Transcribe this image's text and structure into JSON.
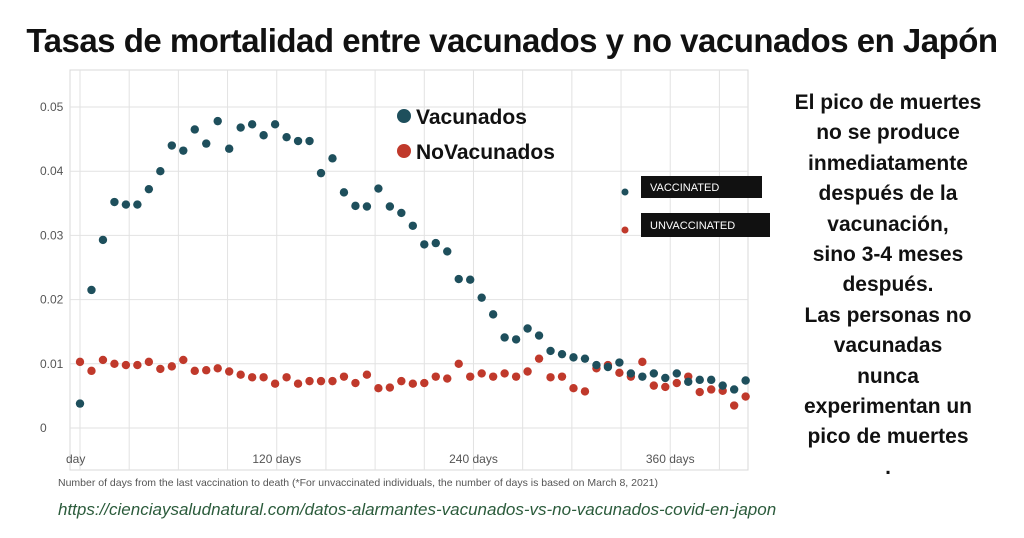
{
  "title": "Tasas de mortalidad entre vacunados y no vacunados en Japón",
  "side_note": [
    "El pico de muertes",
    "no se produce",
    "inmediatamente",
    "después de la",
    "vacunación,",
    "sino 3-4 meses",
    "después.",
    "Las personas no",
    "vacunadas",
    "nunca",
    "experimentan un",
    "pico de muertes",
    "."
  ],
  "source_url": "https://cienciaysaludnatural.com/datos-alarmantes-vacunados-vs-no-vacunados-covid-en-japon",
  "colors": {
    "vaccinated": "#1e4f5c",
    "unvaccinated": "#c0392b",
    "grid": "#e2e2e2",
    "legend_box": "#111111"
  },
  "chart_data": {
    "type": "scatter",
    "xlabel": "Number of days from the last vaccination to death (*For unvaccinated individuals, the number of days is based on March 8, 2021)",
    "ylabel": "",
    "xlim": [
      0,
      405
    ],
    "ylim": [
      0,
      0.05
    ],
    "x_ticks": [
      {
        "value": 0,
        "label": "day"
      },
      {
        "value": 120,
        "label": "120 days"
      },
      {
        "value": 240,
        "label": "240 days"
      },
      {
        "value": 360,
        "label": "360 days"
      }
    ],
    "y_ticks": [
      {
        "value": 0,
        "label": "0"
      },
      {
        "value": 0.01,
        "label": "0.01"
      },
      {
        "value": 0.02,
        "label": "0.02"
      },
      {
        "value": 0.03,
        "label": "0.03"
      },
      {
        "value": 0.04,
        "label": "0.04"
      },
      {
        "value": 0.05,
        "label": "0.05"
      }
    ],
    "grid": true,
    "legend_main": [
      {
        "label": "Vacunados",
        "series": "vaccinated"
      },
      {
        "label": "NoVacunados",
        "series": "unvaccinated"
      }
    ],
    "legend_boxes": [
      {
        "label": "VACCINATED",
        "series": "vaccinated"
      },
      {
        "label": "UNVACCINATED",
        "series": "unvaccinated"
      }
    ],
    "series": [
      {
        "name": "Vacunados",
        "key": "vaccinated",
        "x": [
          0,
          7,
          14,
          21,
          28,
          35,
          42,
          49,
          56,
          63,
          70,
          77,
          84,
          91,
          98,
          105,
          112,
          119,
          126,
          133,
          140,
          147,
          154,
          161,
          168,
          175,
          182,
          189,
          196,
          203,
          210,
          217,
          224,
          231,
          238,
          245,
          252,
          259,
          266,
          273,
          280,
          287,
          294,
          301,
          308,
          315,
          322,
          329,
          336,
          343,
          350,
          357,
          364,
          371,
          378,
          385,
          392,
          399,
          406
        ],
        "y": [
          0.0038,
          0.0215,
          0.0293,
          0.0352,
          0.0348,
          0.0348,
          0.0372,
          0.04,
          0.044,
          0.0432,
          0.0465,
          0.0443,
          0.0478,
          0.0435,
          0.0468,
          0.0473,
          0.0456,
          0.0473,
          0.0453,
          0.0447,
          0.0447,
          0.0397,
          0.042,
          0.0367,
          0.0346,
          0.0345,
          0.0373,
          0.0345,
          0.0335,
          0.0315,
          0.0286,
          0.0288,
          0.0275,
          0.0232,
          0.0231,
          0.0203,
          0.0177,
          0.0141,
          0.0138,
          0.0155,
          0.0144,
          0.012,
          0.0115,
          0.011,
          0.0108,
          0.0098,
          0.0095,
          0.0102,
          0.0085,
          0.008,
          0.0085,
          0.0078,
          0.0085,
          0.0072,
          0.0075,
          0.0075,
          0.0066,
          0.006,
          0.0074
        ]
      },
      {
        "name": "NoVacunados",
        "key": "unvaccinated",
        "x": [
          0,
          7,
          14,
          21,
          28,
          35,
          42,
          49,
          56,
          63,
          70,
          77,
          84,
          91,
          98,
          105,
          112,
          119,
          126,
          133,
          140,
          147,
          154,
          161,
          168,
          175,
          182,
          189,
          196,
          203,
          210,
          217,
          224,
          231,
          238,
          245,
          252,
          259,
          266,
          273,
          280,
          287,
          294,
          301,
          308,
          315,
          322,
          329,
          336,
          343,
          350,
          357,
          364,
          371,
          378,
          385,
          392,
          399,
          406
        ],
        "y": [
          0.0103,
          0.0089,
          0.0106,
          0.01,
          0.0098,
          0.0098,
          0.0103,
          0.0092,
          0.0096,
          0.0106,
          0.0089,
          0.009,
          0.0093,
          0.0088,
          0.0083,
          0.0079,
          0.0079,
          0.0069,
          0.0079,
          0.0069,
          0.0073,
          0.0073,
          0.0073,
          0.008,
          0.007,
          0.0083,
          0.0062,
          0.0063,
          0.0073,
          0.0069,
          0.007,
          0.008,
          0.0077,
          0.01,
          0.008,
          0.0085,
          0.008,
          0.0085,
          0.008,
          0.0088,
          0.0108,
          0.0079,
          0.008,
          0.0062,
          0.0057,
          0.0093,
          0.0098,
          0.0086,
          0.008,
          0.0103,
          0.0066,
          0.0064,
          0.007,
          0.008,
          0.0056,
          0.006,
          0.0058,
          0.0035,
          0.0049
        ]
      }
    ]
  }
}
